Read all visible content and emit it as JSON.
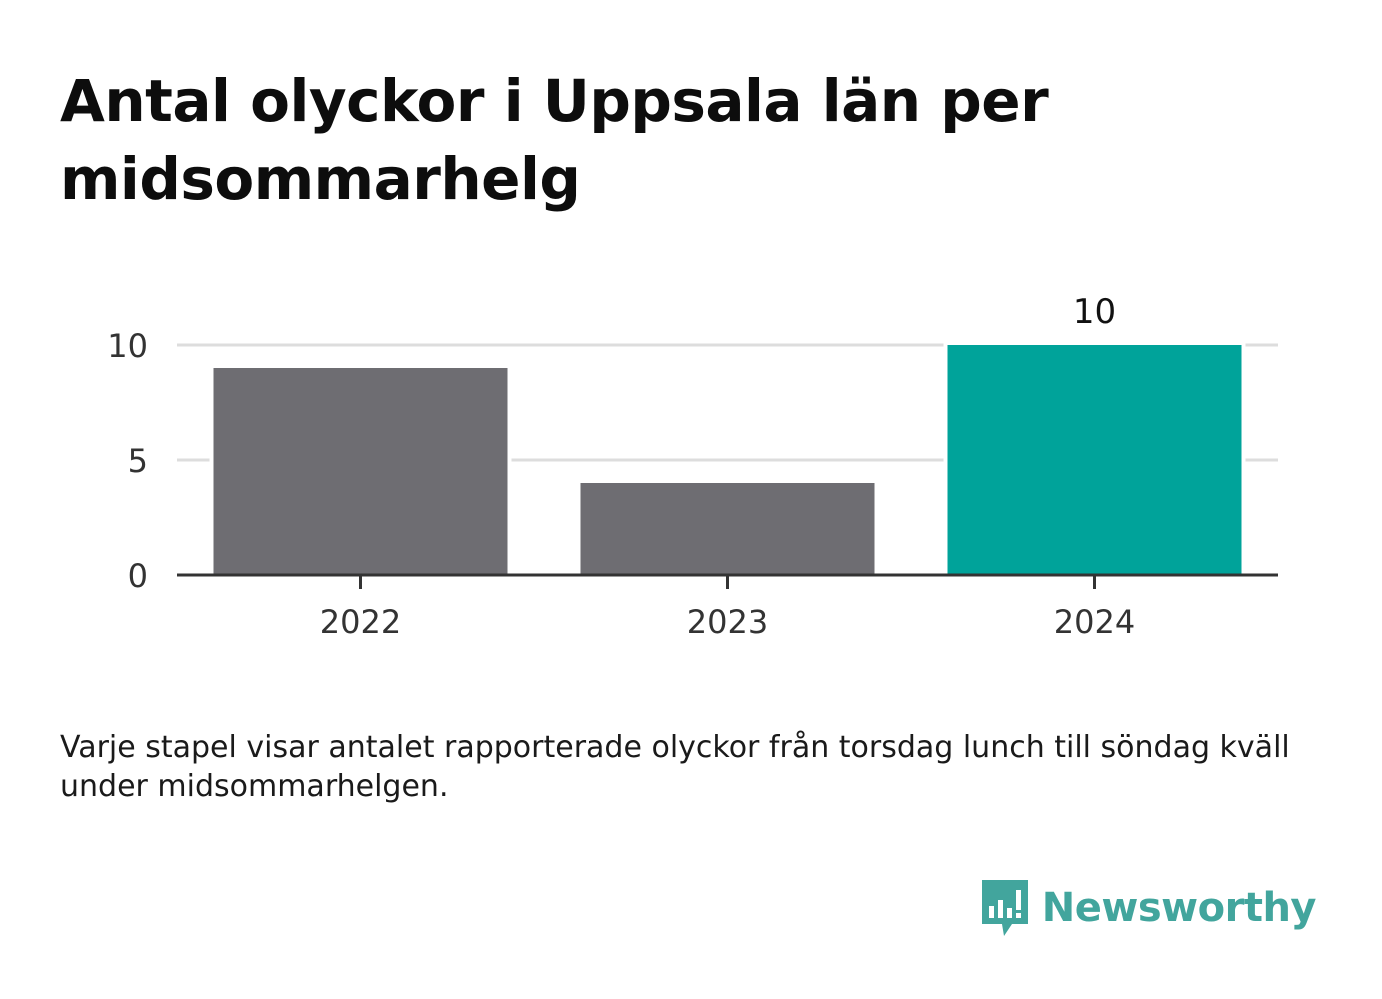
{
  "title": "Antal olyckor i Uppsala län per midsommarhelg",
  "caption": "Varje stapel visar antalet rapporterade olyckor från torsdag lunch till söndag kväll under midsommarhelgen.",
  "brand": {
    "name": "Newsworthy",
    "logo_icon": "bar-chart-speech-bubble-icon",
    "color": "#42a59d"
  },
  "colors": {
    "default_bar": "#6e6d72",
    "highlight_bar": "#00a39a",
    "gridline": "#dddddd",
    "axis": "#333333"
  },
  "chart_data": {
    "type": "bar",
    "categories": [
      "2022",
      "2023",
      "2024"
    ],
    "values": [
      9,
      4,
      10
    ],
    "highlight_index": 2,
    "data_labels": [
      "",
      "",
      "10"
    ],
    "yticks": [
      0,
      5,
      10
    ],
    "ylim": [
      0,
      10
    ],
    "grid": true,
    "title": "Antal olyckor i Uppsala län per midsommarhelg",
    "xlabel": "",
    "ylabel": ""
  }
}
